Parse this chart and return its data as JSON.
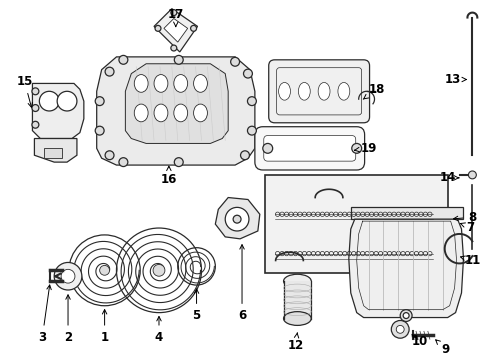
{
  "bg_color": "#ffffff",
  "fig_width": 4.89,
  "fig_height": 3.6,
  "dpi": 100,
  "line_color": "#2a2a2a",
  "fill_color": "#f5f5f5",
  "font_size": 8.5,
  "lw": 0.9
}
